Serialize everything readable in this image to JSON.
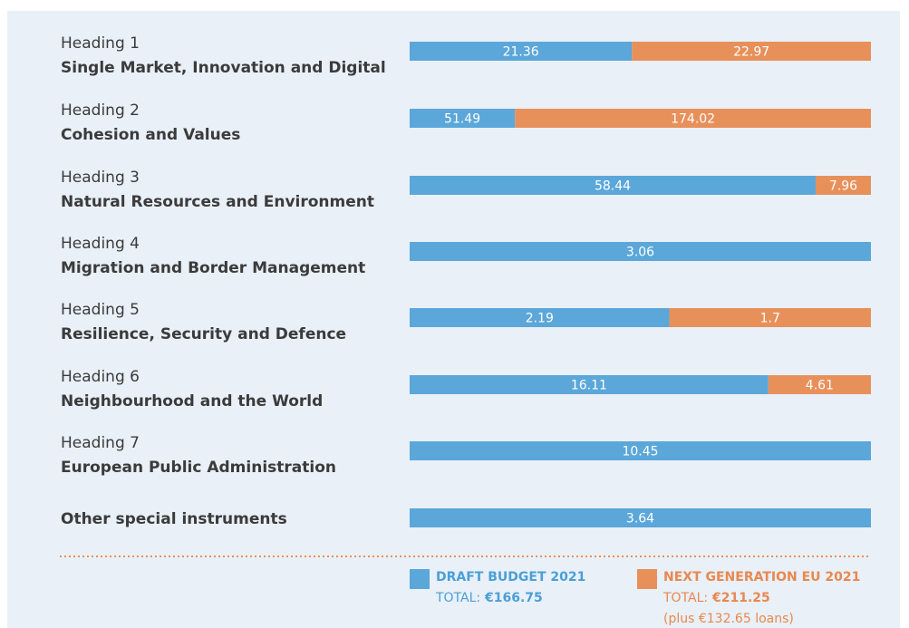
{
  "chart_data": {
    "type": "stacked-bar-100",
    "category_headings": [
      "Heading 1",
      "Heading 2",
      "Heading 3",
      "Heading 4",
      "Heading 5",
      "Heading 6",
      "Heading 7",
      null
    ],
    "categories": [
      "Single Market, Innovation and Digital",
      "Cohesion and Values",
      "Natural Resources and Environment",
      "Migration and Border Management",
      "Resilience, Security and Defence",
      "Neighbourhood and the World",
      "European Public Administration",
      "Other special instruments"
    ],
    "series": [
      {
        "name": "DRAFT BUDGET 2021",
        "color": "#5ba7d9",
        "total_prefix": "TOTAL:",
        "total": "€166.75",
        "values": [
          21.36,
          51.49,
          58.44,
          3.06,
          2.19,
          16.11,
          10.45,
          3.64
        ]
      },
      {
        "name": "NEXT GENERATION EU 2021",
        "color": "#e8905a",
        "total_prefix": "TOTAL:",
        "total": "€211.25",
        "note": "(plus €132.65 loans)",
        "values": [
          22.97,
          174.02,
          7.96,
          null,
          1.7,
          4.61,
          null,
          null
        ]
      }
    ]
  }
}
